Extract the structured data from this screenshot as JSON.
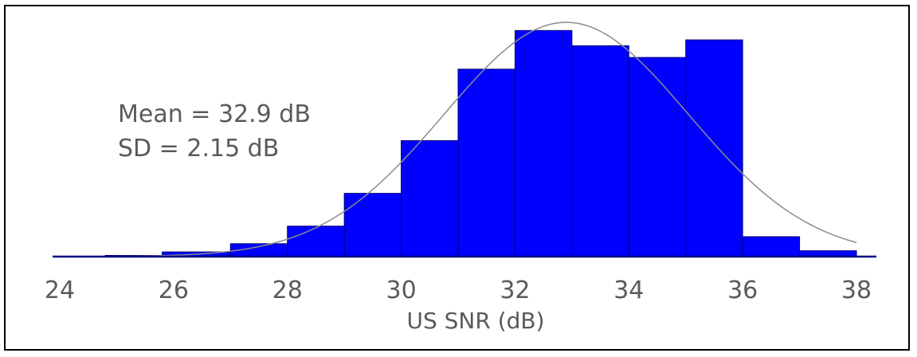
{
  "chart_data": {
    "type": "bar",
    "histogram": true,
    "title": "",
    "xlabel": "US SNR (dB)",
    "ylabel": "",
    "xlim": [
      24,
      38.6
    ],
    "ylim": [
      0,
      100
    ],
    "bins": [
      {
        "x0": 24.8,
        "x1": 25.8,
        "value": 0.5
      },
      {
        "x0": 25.8,
        "x1": 27.0,
        "value": 2.0
      },
      {
        "x0": 27.0,
        "x1": 28.0,
        "value": 5.5
      },
      {
        "x0": 28.0,
        "x1": 29.0,
        "value": 13.0
      },
      {
        "x0": 29.0,
        "x1": 30.0,
        "value": 27.0
      },
      {
        "x0": 30.0,
        "x1": 31.0,
        "value": 49.5
      },
      {
        "x0": 31.0,
        "x1": 32.0,
        "value": 80.0
      },
      {
        "x0": 32.0,
        "x1": 33.0,
        "value": 96.5
      },
      {
        "x0": 33.0,
        "x1": 34.0,
        "value": 90.0
      },
      {
        "x0": 34.0,
        "x1": 35.0,
        "value": 85.0
      },
      {
        "x0": 35.0,
        "x1": 36.0,
        "value": 92.5
      },
      {
        "x0": 36.0,
        "x1": 37.0,
        "value": 8.5
      },
      {
        "x0": 37.0,
        "x1": 38.0,
        "value": 2.5
      }
    ],
    "fit_curve": {
      "type": "normal",
      "mean": 32.9,
      "sd": 2.15,
      "peak": 100
    },
    "xticks": [
      {
        "value": 24,
        "label": "24"
      },
      {
        "value": 26,
        "label": "26"
      },
      {
        "value": 28,
        "label": "28"
      },
      {
        "value": 30,
        "label": "30"
      },
      {
        "value": 32,
        "label": "32"
      },
      {
        "value": 34,
        "label": "34"
      },
      {
        "value": 36,
        "label": "36"
      },
      {
        "value": 38,
        "label": "38"
      }
    ],
    "annotations": [
      "Mean = 32.9 dB",
      "SD = 2.15 dB"
    ],
    "colors": {
      "bar": "#0000ff",
      "bar_edge": "#00007a",
      "curve": "#8c8c8c",
      "axis": "#000080",
      "text": "#5a5a5a"
    },
    "grid": false,
    "legend": "none"
  }
}
